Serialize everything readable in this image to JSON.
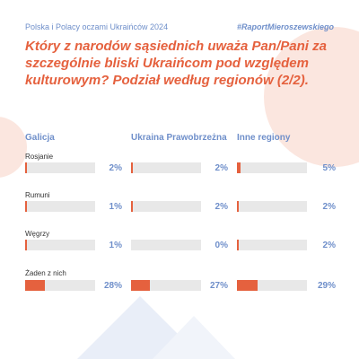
{
  "header": {
    "series": "Polska i Polacy oczami Ukraińców 2024",
    "hashtag": "#RaportMieroszewskiego"
  },
  "chart_data": {
    "type": "bar",
    "title": "Który z narodów sąsiednich uważa Pan/Pani za szczególnie bliski Ukraińcom pod względem kulturowym? Podział według regionów (2/2).",
    "categories": [
      "Rosjanie",
      "Rumuni",
      "Węgrzy",
      "Żaden z nich"
    ],
    "series": [
      {
        "name": "Galicja",
        "values": [
          2,
          1,
          1,
          28
        ]
      },
      {
        "name": "Ukraina Prawobrzeżna",
        "values": [
          2,
          2,
          0,
          27
        ]
      },
      {
        "name": "Inne regiony",
        "values": [
          5,
          2,
          2,
          29
        ]
      }
    ],
    "value_suffix": "%",
    "ylim": [
      0,
      100
    ],
    "colors": {
      "bar": "#e5613e",
      "track": "#e8e8e8",
      "label": "#6f8fca"
    }
  }
}
